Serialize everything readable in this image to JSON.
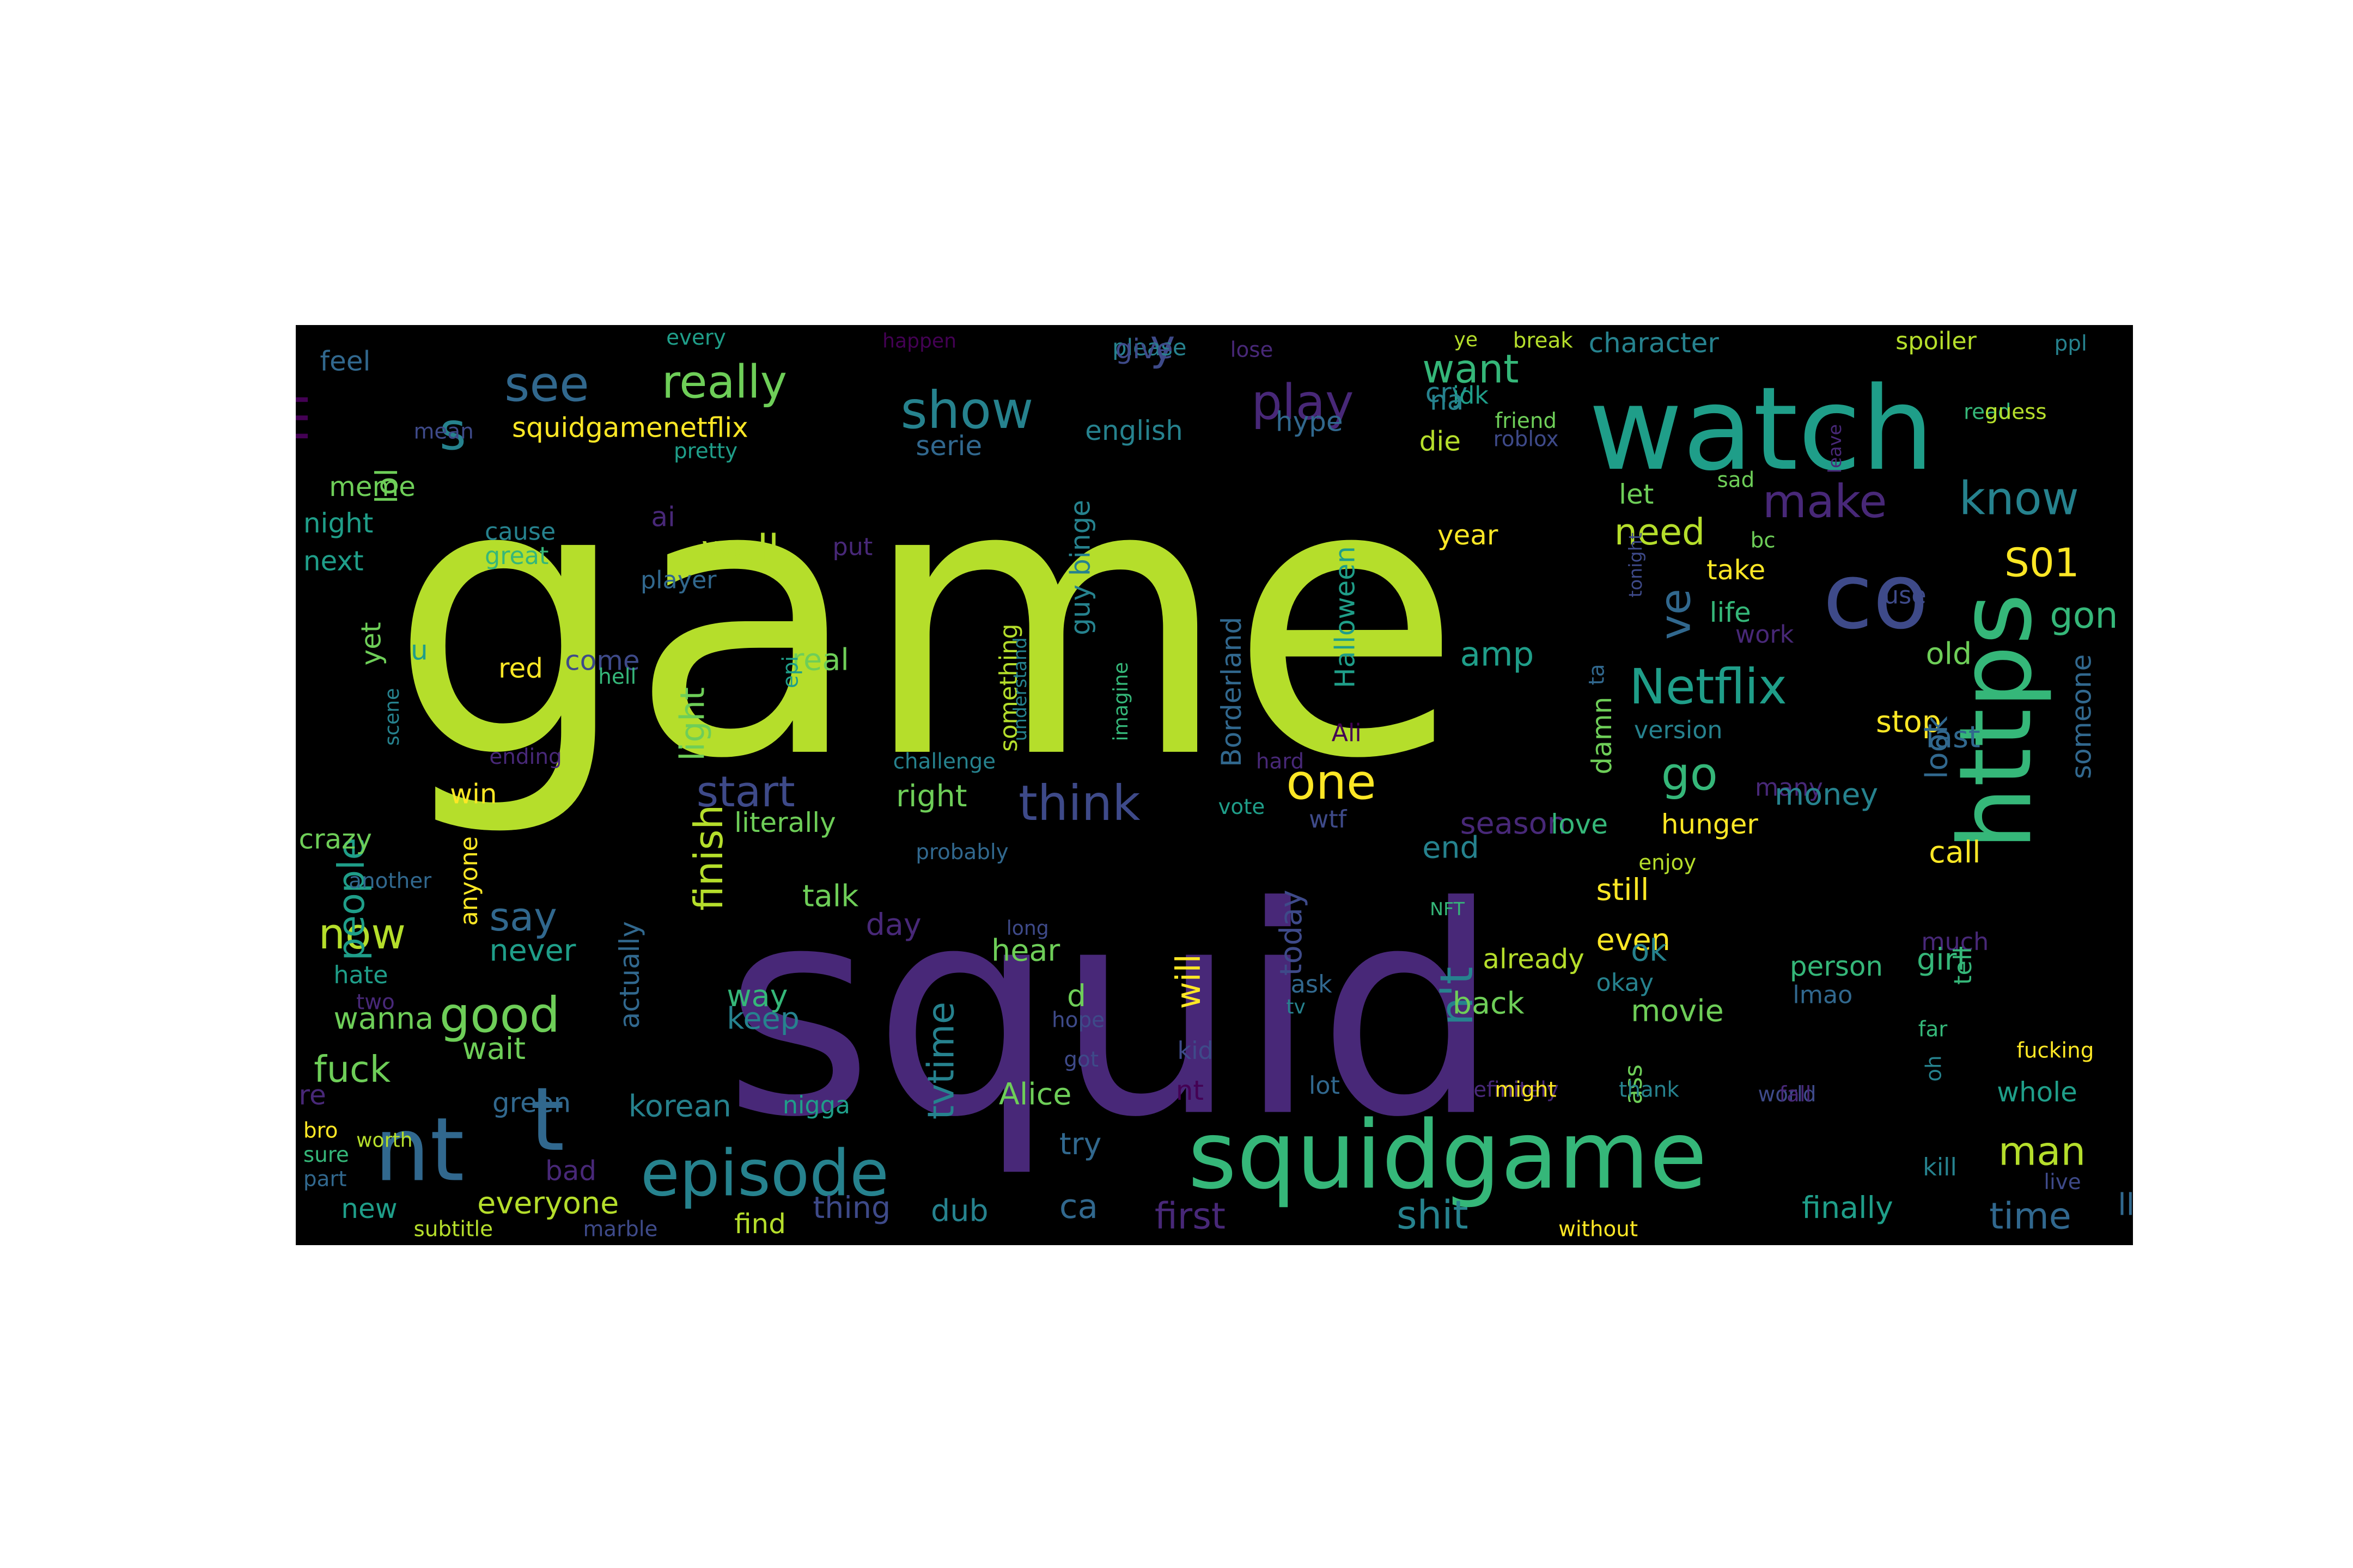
{
  "palette": {
    "background": "#000000",
    "c0": "#440154",
    "c1": "#482878",
    "c2": "#3e4a89",
    "c3": "#31688e",
    "c4": "#26828e",
    "c5": "#1f9e89",
    "c6": "#35b779",
    "c7": "#6ece58",
    "c8": "#b5de2b",
    "c9": "#fde725"
  },
  "words": [
    {
      "text": "game",
      "fs": 250,
      "c": "c8"
    },
    {
      "text": "squid",
      "fs": 190,
      "c": "c1"
    },
    {
      "text": "watch",
      "fs": 76,
      "c": "c5"
    },
    {
      "text": "https",
      "fs": 66,
      "c": "c6"
    },
    {
      "text": "squidgame",
      "fs": 62,
      "c": "c6"
    },
    {
      "text": "co",
      "fs": 60,
      "c": "c2"
    },
    {
      "text": "nt",
      "fs": 58,
      "c": "c3"
    },
    {
      "text": "t",
      "fs": 58,
      "c": "c3"
    },
    {
      "text": "episode",
      "fs": 42,
      "c": "c4"
    },
    {
      "text": "show",
      "fs": 34,
      "c": "c4"
    },
    {
      "text": "see",
      "fs": 32,
      "c": "c3"
    },
    {
      "text": "play",
      "fs": 32,
      "c": "c1"
    },
    {
      "text": "m",
      "fs": 34,
      "c": "c0"
    },
    {
      "text": "s",
      "fs": 34,
      "c": "c4"
    },
    {
      "text": "really",
      "fs": 30,
      "c": "c7"
    },
    {
      "text": "make",
      "fs": 30,
      "c": "c1"
    },
    {
      "text": "know",
      "fs": 30,
      "c": "c4"
    },
    {
      "text": "think",
      "fs": 32,
      "c": "c2"
    },
    {
      "text": "Netflix",
      "fs": 32,
      "c": "c5"
    },
    {
      "text": "good",
      "fs": 32,
      "c": "c7"
    },
    {
      "text": "one",
      "fs": 32,
      "c": "c9"
    },
    {
      "text": "start",
      "fs": 28,
      "c": "c2"
    },
    {
      "text": "now",
      "fs": 28,
      "c": "c8"
    },
    {
      "text": "go",
      "fs": 30,
      "c": "c6"
    },
    {
      "text": "finish",
      "fs": 26,
      "c": "c8"
    },
    {
      "text": "people",
      "fs": 24,
      "c": "c5"
    },
    {
      "text": "n't",
      "fs": 30,
      "c": "c4"
    },
    {
      "text": "ve",
      "fs": 28,
      "c": "c3"
    },
    {
      "text": "y",
      "fs": 28,
      "c": "c2"
    },
    {
      "text": "want",
      "fs": 26,
      "c": "c6"
    },
    {
      "text": "need",
      "fs": 24,
      "c": "c8"
    },
    {
      "text": "well",
      "fs": 26,
      "c": "c8"
    },
    {
      "text": "S01",
      "fs": 26,
      "c": "c9"
    },
    {
      "text": "gon",
      "fs": 24,
      "c": "c6"
    },
    {
      "text": "man",
      "fs": 26,
      "c": "c8"
    },
    {
      "text": "say",
      "fs": 26,
      "c": "c3"
    },
    {
      "text": "shit",
      "fs": 26,
      "c": "c4"
    },
    {
      "text": "first",
      "fs": 24,
      "c": "c1"
    },
    {
      "text": "time",
      "fs": 24,
      "c": "c3"
    },
    {
      "text": "tvtime",
      "fs": 24,
      "c": "c4"
    },
    {
      "text": "light",
      "fs": 22,
      "c": "c7"
    },
    {
      "text": "fuck",
      "fs": 24,
      "c": "c7"
    },
    {
      "text": "amp",
      "fs": 22,
      "c": "c5"
    },
    {
      "text": "will",
      "fs": 22,
      "c": "c9"
    },
    {
      "text": "lol",
      "fs": 20,
      "c": "c7"
    },
    {
      "text": "squidgamenetflix",
      "fs": 18,
      "c": "c9"
    },
    {
      "text": "Borderland",
      "fs": 18,
      "c": "c3"
    },
    {
      "text": "Halloween",
      "fs": 18,
      "c": "c5"
    },
    {
      "text": "ca",
      "fs": 22,
      "c": "c3"
    },
    {
      "text": "try",
      "fs": 20,
      "c": "c3"
    },
    {
      "text": "feel",
      "fs": 18,
      "c": "c3"
    },
    {
      "text": "every",
      "fs": 14,
      "c": "c5"
    },
    {
      "text": "happen",
      "fs": 13,
      "c": "c0"
    },
    {
      "text": "please",
      "fs": 15,
      "c": "c4"
    },
    {
      "text": "give",
      "fs": 18,
      "c": "c2"
    },
    {
      "text": "lose",
      "fs": 14,
      "c": "c1"
    },
    {
      "text": "ye",
      "fs": 13,
      "c": "c8"
    },
    {
      "text": "break",
      "fs": 14,
      "c": "c8"
    },
    {
      "text": "character",
      "fs": 18,
      "c": "c4"
    },
    {
      "text": "spoiler",
      "fs": 16,
      "c": "c8"
    },
    {
      "text": "ppl",
      "fs": 14,
      "c": "c4"
    },
    {
      "text": "cry",
      "fs": 18,
      "c": "c4"
    },
    {
      "text": "idk",
      "fs": 16,
      "c": "c5"
    },
    {
      "text": "na",
      "fs": 18,
      "c": "c4"
    },
    {
      "text": "hype",
      "fs": 18,
      "c": "c3"
    },
    {
      "text": "english",
      "fs": 18,
      "c": "c4"
    },
    {
      "text": "friend",
      "fs": 14,
      "c": "c7"
    },
    {
      "text": "roblox",
      "fs": 14,
      "c": "c2"
    },
    {
      "text": "die",
      "fs": 18,
      "c": "c8"
    },
    {
      "text": "leave",
      "fs": 12,
      "c": "c1"
    },
    {
      "text": "read",
      "fs": 14,
      "c": "c6"
    },
    {
      "text": "guess",
      "fs": 14,
      "c": "c8"
    },
    {
      "text": "mean",
      "fs": 14,
      "c": "c2"
    },
    {
      "text": "pretty",
      "fs": 14,
      "c": "c5"
    },
    {
      "text": "serie",
      "fs": 18,
      "c": "c3"
    },
    {
      "text": "meme",
      "fs": 18,
      "c": "c7"
    },
    {
      "text": "night",
      "fs": 18,
      "c": "c5"
    },
    {
      "text": "next",
      "fs": 18,
      "c": "c5"
    },
    {
      "text": "cause",
      "fs": 16,
      "c": "c4"
    },
    {
      "text": "great",
      "fs": 16,
      "c": "c6"
    },
    {
      "text": "ai",
      "fs": 18,
      "c": "c1"
    },
    {
      "text": "put",
      "fs": 16,
      "c": "c1"
    },
    {
      "text": "player",
      "fs": 16,
      "c": "c3"
    },
    {
      "text": "yet",
      "fs": 18,
      "c": "c7"
    },
    {
      "text": "u",
      "fs": 18,
      "c": "c5"
    },
    {
      "text": "red",
      "fs": 18,
      "c": "c9"
    },
    {
      "text": "come",
      "fs": 18,
      "c": "c2"
    },
    {
      "text": "real",
      "fs": 20,
      "c": "c7"
    },
    {
      "text": "hell",
      "fs": 14,
      "c": "c6"
    },
    {
      "text": "epi",
      "fs": 14,
      "c": "c5"
    },
    {
      "text": "scene",
      "fs": 13,
      "c": "c4"
    },
    {
      "text": "ending",
      "fs": 14,
      "c": "c1"
    },
    {
      "text": "challenge",
      "fs": 14,
      "c": "c4"
    },
    {
      "text": "win",
      "fs": 18,
      "c": "c9"
    },
    {
      "text": "literally",
      "fs": 18,
      "c": "c7"
    },
    {
      "text": "right",
      "fs": 20,
      "c": "c7"
    },
    {
      "text": "something",
      "fs": 16,
      "c": "c8"
    },
    {
      "text": "understand",
      "fs": 12,
      "c": "c4"
    },
    {
      "text": "guy binge",
      "fs": 18,
      "c": "c4"
    },
    {
      "text": "imagine",
      "fs": 13,
      "c": "c6"
    },
    {
      "text": "year",
      "fs": 18,
      "c": "c9"
    },
    {
      "text": "let",
      "fs": 18,
      "c": "c7"
    },
    {
      "text": "sad",
      "fs": 14,
      "c": "c7"
    },
    {
      "text": "take",
      "fs": 18,
      "c": "c9"
    },
    {
      "text": "life",
      "fs": 18,
      "c": "c6"
    },
    {
      "text": "bc",
      "fs": 14,
      "c": "c7"
    },
    {
      "text": "tonight",
      "fs": 12,
      "c": "c2"
    },
    {
      "text": "use",
      "fs": 16,
      "c": "c2"
    },
    {
      "text": "work",
      "fs": 16,
      "c": "c1"
    },
    {
      "text": "ta",
      "fs": 14,
      "c": "c3"
    },
    {
      "text": "old",
      "fs": 20,
      "c": "c7"
    },
    {
      "text": "someone",
      "fs": 18,
      "c": "c3"
    },
    {
      "text": "version",
      "fs": 16,
      "c": "c4"
    },
    {
      "text": "last",
      "fs": 20,
      "c": "c3"
    },
    {
      "text": "stop",
      "fs": 20,
      "c": "c9"
    },
    {
      "text": "Ali",
      "fs": 16,
      "c": "c0"
    },
    {
      "text": "hard",
      "fs": 14,
      "c": "c1"
    },
    {
      "text": "vote",
      "fs": 14,
      "c": "c5"
    },
    {
      "text": "damn",
      "fs": 18,
      "c": "c7"
    },
    {
      "text": "many",
      "fs": 16,
      "c": "c1"
    },
    {
      "text": "money",
      "fs": 20,
      "c": "c4"
    },
    {
      "text": "wtf",
      "fs": 16,
      "c": "c2"
    },
    {
      "text": "season",
      "fs": 20,
      "c": "c1"
    },
    {
      "text": "love",
      "fs": 18,
      "c": "c6"
    },
    {
      "text": "hunger",
      "fs": 18,
      "c": "c9"
    },
    {
      "text": "look",
      "fs": 20,
      "c": "c3"
    },
    {
      "text": "crazy",
      "fs": 18,
      "c": "c7"
    },
    {
      "text": "probably",
      "fs": 14,
      "c": "c3"
    },
    {
      "text": "end",
      "fs": 20,
      "c": "c4"
    },
    {
      "text": "enjoy",
      "fs": 14,
      "c": "c8"
    },
    {
      "text": "call",
      "fs": 20,
      "c": "c9"
    },
    {
      "text": "another",
      "fs": 14,
      "c": "c3"
    },
    {
      "text": "talk",
      "fs": 20,
      "c": "c7"
    },
    {
      "text": "anyone",
      "fs": 16,
      "c": "c9"
    },
    {
      "text": "NFT",
      "fs": 12,
      "c": "c6"
    },
    {
      "text": "still",
      "fs": 20,
      "c": "c9"
    },
    {
      "text": "never",
      "fs": 20,
      "c": "c5"
    },
    {
      "text": "day",
      "fs": 20,
      "c": "c1"
    },
    {
      "text": "long",
      "fs": 13,
      "c": "c2"
    },
    {
      "text": "even",
      "fs": 20,
      "c": "c9"
    },
    {
      "text": "today",
      "fs": 20,
      "c": "c2"
    },
    {
      "text": "much",
      "fs": 16,
      "c": "c1"
    },
    {
      "text": "tell",
      "fs": 16,
      "c": "c6"
    },
    {
      "text": "hate",
      "fs": 16,
      "c": "c5"
    },
    {
      "text": "actually",
      "fs": 18,
      "c": "c3"
    },
    {
      "text": "hear",
      "fs": 20,
      "c": "c7"
    },
    {
      "text": "already",
      "fs": 18,
      "c": "c8"
    },
    {
      "text": "person",
      "fs": 18,
      "c": "c6"
    },
    {
      "text": "ok",
      "fs": 20,
      "c": "c4"
    },
    {
      "text": "girl",
      "fs": 20,
      "c": "c6"
    },
    {
      "text": "two",
      "fs": 14,
      "c": "c1"
    },
    {
      "text": "ask",
      "fs": 16,
      "c": "c3"
    },
    {
      "text": "okay",
      "fs": 16,
      "c": "c4"
    },
    {
      "text": "lmao",
      "fs": 16,
      "c": "c3"
    },
    {
      "text": "wanna",
      "fs": 20,
      "c": "c7"
    },
    {
      "text": "way",
      "fs": 20,
      "c": "c6"
    },
    {
      "text": "d",
      "fs": 20,
      "c": "c7"
    },
    {
      "text": "back",
      "fs": 20,
      "c": "c7"
    },
    {
      "text": "tv",
      "fs": 13,
      "c": "c4"
    },
    {
      "text": "keep",
      "fs": 20,
      "c": "c4"
    },
    {
      "text": "hope",
      "fs": 14,
      "c": "c2"
    },
    {
      "text": "movie",
      "fs": 20,
      "c": "c7"
    },
    {
      "text": "got",
      "fs": 14,
      "c": "c2"
    },
    {
      "text": "oh",
      "fs": 14,
      "c": "c4"
    },
    {
      "text": "far",
      "fs": 14,
      "c": "c6"
    },
    {
      "text": "wait",
      "fs": 20,
      "c": "c7"
    },
    {
      "text": "kid",
      "fs": 16,
      "c": "c2"
    },
    {
      "text": "fucking",
      "fs": 14,
      "c": "c9"
    },
    {
      "text": "ass",
      "fs": 16,
      "c": "c7"
    },
    {
      "text": "re",
      "fs": 18,
      "c": "c1"
    },
    {
      "text": "green",
      "fs": 18,
      "c": "c3"
    },
    {
      "text": "nt",
      "fs": 18,
      "c": "c0"
    },
    {
      "text": "lot",
      "fs": 16,
      "c": "c3"
    },
    {
      "text": "definitely",
      "fs": 14,
      "c": "c1"
    },
    {
      "text": "might",
      "fs": 14,
      "c": "c9"
    },
    {
      "text": "thank",
      "fs": 14,
      "c": "c4"
    },
    {
      "text": "world",
      "fs": 14,
      "c": "c2"
    },
    {
      "text": "fall",
      "fs": 14,
      "c": "c1"
    },
    {
      "text": "whole",
      "fs": 18,
      "c": "c5"
    },
    {
      "text": "korean",
      "fs": 20,
      "c": "c4"
    },
    {
      "text": "nigga",
      "fs": 16,
      "c": "c5"
    },
    {
      "text": "Alice",
      "fs": 20,
      "c": "c7"
    },
    {
      "text": "bro",
      "fs": 14,
      "c": "c9"
    },
    {
      "text": "worth",
      "fs": 13,
      "c": "c8"
    },
    {
      "text": "sure",
      "fs": 14,
      "c": "c6"
    },
    {
      "text": "part",
      "fs": 14,
      "c": "c3"
    },
    {
      "text": "bad",
      "fs": 18,
      "c": "c1"
    },
    {
      "text": "kill",
      "fs": 16,
      "c": "c4"
    },
    {
      "text": "live",
      "fs": 14,
      "c": "c2"
    },
    {
      "text": "new",
      "fs": 18,
      "c": "c5"
    },
    {
      "text": "everyone",
      "fs": 20,
      "c": "c8"
    },
    {
      "text": "thing",
      "fs": 20,
      "c": "c2"
    },
    {
      "text": "dub",
      "fs": 20,
      "c": "c4"
    },
    {
      "text": "ll",
      "fs": 20,
      "c": "c3"
    },
    {
      "text": "finally",
      "fs": 20,
      "c": "c5"
    },
    {
      "text": "find",
      "fs": 18,
      "c": "c8"
    },
    {
      "text": "subtitle",
      "fs": 14,
      "c": "c8"
    },
    {
      "text": "marble",
      "fs": 14,
      "c": "c2"
    },
    {
      "text": "without",
      "fs": 14,
      "c": "c9"
    }
  ]
}
